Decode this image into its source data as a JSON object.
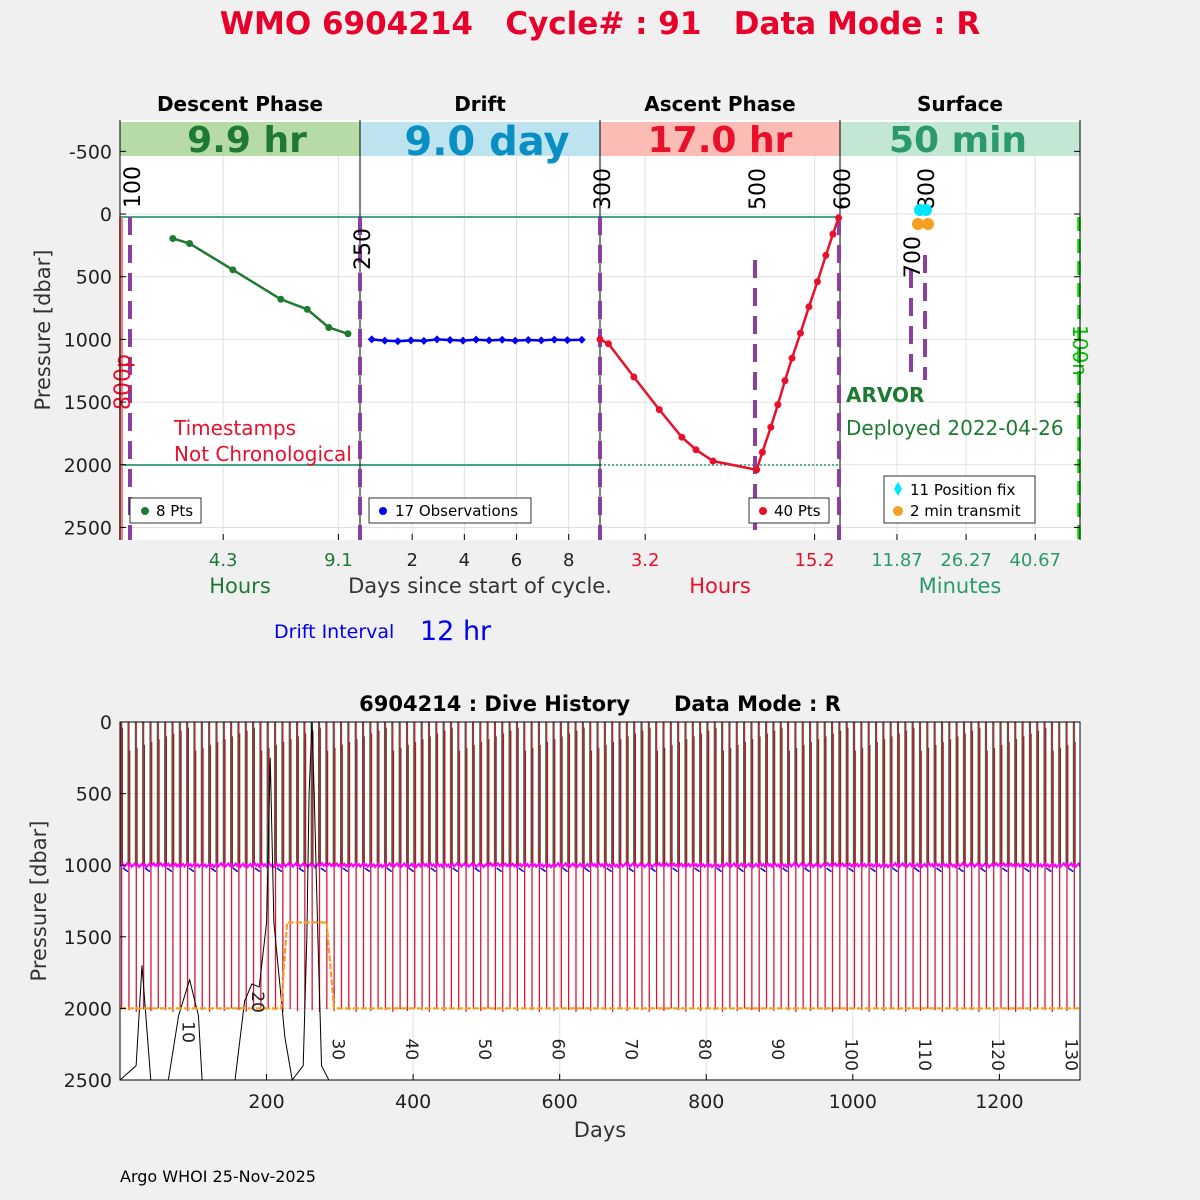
{
  "title": "WMO 6904214   Cycle# : 91   Data Mode : R",
  "footer": "Argo WHOI 25-Nov-2025",
  "colors": {
    "title": "#e8002a",
    "descent": "#1e7a32",
    "drift": "#0000ee",
    "ascent": "#e8102a",
    "surface": "#2a9a6a",
    "purple": "#8b3f9e",
    "green_bright": "#00dd00",
    "descent_bg": "#b7dba7",
    "drift_bg": "#bde3ef",
    "ascent_bg": "#fbbcb6",
    "surface_bg": "#c4e6d4",
    "drift_big": "#0a8fc5",
    "cyan": "#00e5ff",
    "orange": "#f5a020"
  },
  "chart_data": [
    {
      "type": "line",
      "name": "cycle-profile",
      "ylabel": "Pressure [dbar]",
      "ylim": [
        -750,
        2600
      ],
      "yticks": [
        -500,
        0,
        500,
        1000,
        1500,
        2000,
        2500
      ],
      "phases": [
        {
          "id": "descent",
          "title": "Descent Phase",
          "duration": "9.9 hr",
          "xlim": [
            0,
            10
          ],
          "xticks": [
            {
              "v": 4.3,
              "label": "4.3"
            },
            {
              "v": 9.1,
              "label": "9.1"
            }
          ],
          "xlabel": "Hours",
          "series": [
            {
              "name": "descent",
              "points": [
                [
                  2.2,
                  195
                ],
                [
                  2.9,
                  235
                ],
                [
                  4.7,
                  445
                ],
                [
                  6.7,
                  680
                ],
                [
                  7.8,
                  760
                ],
                [
                  8.7,
                  905
                ],
                [
                  9.5,
                  955
                ]
              ]
            }
          ],
          "legend": "8 Pts"
        },
        {
          "id": "drift",
          "title": "Drift",
          "duration": "9.0 day",
          "xlim": [
            0,
            9.2
          ],
          "xticks": [
            {
              "v": 2,
              "label": "2"
            },
            {
              "v": 4,
              "label": "4"
            },
            {
              "v": 6,
              "label": "6"
            },
            {
              "v": 8,
              "label": "8"
            }
          ],
          "xlabel": "Days since start of cycle.",
          "series": [
            {
              "name": "drift",
              "points": [
                [
                  0.45,
                  1000
                ],
                [
                  0.95,
                  1010
                ],
                [
                  1.45,
                  1015
                ],
                [
                  1.95,
                  1008
                ],
                [
                  2.45,
                  1012
                ],
                [
                  2.95,
                  1000
                ],
                [
                  3.45,
                  1005
                ],
                [
                  3.95,
                  1010
                ],
                [
                  4.45,
                  1002
                ],
                [
                  4.95,
                  1008
                ],
                [
                  5.45,
                  1003
                ],
                [
                  5.95,
                  1010
                ],
                [
                  6.45,
                  1005
                ],
                [
                  6.95,
                  1008
                ],
                [
                  7.45,
                  1002
                ],
                [
                  7.95,
                  1006
                ],
                [
                  8.5,
                  1003
                ]
              ]
            }
          ],
          "legend": "17 Observations"
        },
        {
          "id": "ascent",
          "title": "Ascent Phase",
          "duration": "17.0 hr",
          "xlim": [
            0,
            17
          ],
          "xticks": [
            {
              "v": 3.2,
              "label": "3.2"
            },
            {
              "v": 15.2,
              "label": "15.2"
            }
          ],
          "xlabel": "Hours",
          "series": [
            {
              "name": "ascent",
              "points": [
                [
                  0,
                  1000
                ],
                [
                  0.6,
                  1035
                ],
                [
                  2.4,
                  1300
                ],
                [
                  4.2,
                  1560
                ],
                [
                  5.8,
                  1780
                ],
                [
                  6.8,
                  1880
                ],
                [
                  8,
                  1970
                ],
                [
                  11.1,
                  2040
                ],
                [
                  11.5,
                  1900
                ],
                [
                  12.1,
                  1700
                ],
                [
                  12.6,
                  1520
                ],
                [
                  13.1,
                  1330
                ],
                [
                  13.6,
                  1150
                ],
                [
                  14.2,
                  950
                ],
                [
                  14.8,
                  740
                ],
                [
                  15.4,
                  540
                ],
                [
                  16,
                  330
                ],
                [
                  16.5,
                  160
                ],
                [
                  16.9,
                  30
                ]
              ]
            }
          ],
          "legend": "40 Pts"
        },
        {
          "id": "surface",
          "title": "Surface",
          "duration": "50 min",
          "xlim": [
            0,
            50
          ],
          "xticks": [
            {
              "v": 11.87,
              "label": "11.87"
            },
            {
              "v": 26.27,
              "label": "26.27"
            },
            {
              "v": 40.67,
              "label": "40.67"
            }
          ],
          "xlabel": "Minutes",
          "legend_items": [
            "11 Position fix",
            "2 min transmit"
          ]
        }
      ],
      "reference_lines": [
        0,
        2000
      ],
      "annotations": {
        "descent_marks": [
          "100",
          "800p"
        ],
        "drift_marks": [
          "250"
        ],
        "ascent_marks": [
          "300",
          "500",
          "600"
        ],
        "surface_marks": [
          "700",
          "800",
          "100n"
        ],
        "note_line1": "Timestamps",
        "note_line2": "Not Chronological",
        "float_type": "ARVOR",
        "deployed": "Deployed 2022-04-26",
        "drift_interval_label": "Drift Interval",
        "drift_interval_value": "12 hr"
      }
    },
    {
      "type": "line",
      "name": "dive-history",
      "title": "6904214 : Dive History      Data Mode : R",
      "xlabel": "Days",
      "ylabel": "Pressure [dbar]",
      "xlim": [
        0,
        1310
      ],
      "ylim": [
        0,
        2500
      ],
      "xticks": [
        200,
        400,
        600,
        800,
        1000,
        1200
      ],
      "yticks": [
        0,
        500,
        1000,
        1500,
        2000,
        2500
      ],
      "cycle_labels": [
        {
          "day": 180,
          "p": 1880,
          "label": "20"
        },
        {
          "day": 85,
          "p": 2090,
          "label": "10"
        },
        {
          "day": 290,
          "p": 2210,
          "label": "30"
        },
        {
          "day": 390,
          "p": 2210,
          "label": "40"
        },
        {
          "day": 490,
          "p": 2210,
          "label": "50"
        },
        {
          "day": 590,
          "p": 2210,
          "label": "60"
        },
        {
          "day": 690,
          "p": 2210,
          "label": "70"
        },
        {
          "day": 790,
          "p": 2210,
          "label": "80"
        },
        {
          "day": 890,
          "p": 2210,
          "label": "90"
        },
        {
          "day": 990,
          "p": 2210,
          "label": "100"
        },
        {
          "day": 1090,
          "p": 2210,
          "label": "110"
        },
        {
          "day": 1190,
          "p": 2210,
          "label": "120"
        },
        {
          "day": 1290,
          "p": 2210,
          "label": "130"
        }
      ],
      "cycle_period_days": 10,
      "drift_pressure": 1000,
      "profile_pressure": 2000,
      "park_series": {
        "name": "park-depth",
        "points": [
          [
            0,
            2000
          ],
          [
            220,
            2000
          ],
          [
            228,
            1400
          ],
          [
            282,
            1400
          ],
          [
            292,
            2000
          ],
          [
            1310,
            2000
          ]
        ]
      },
      "ground_series": {
        "name": "bathymetry",
        "points": [
          [
            0,
            2500
          ],
          [
            22,
            2400
          ],
          [
            30,
            1700
          ],
          [
            42,
            2500
          ],
          [
            66,
            2500
          ],
          [
            80,
            2050
          ],
          [
            95,
            1800
          ],
          [
            107,
            2050
          ],
          [
            112,
            2500
          ],
          [
            157,
            2500
          ],
          [
            170,
            1950
          ],
          [
            180,
            1830
          ],
          [
            190,
            1850
          ],
          [
            200,
            1400
          ],
          [
            205,
            250
          ],
          [
            210,
            1400
          ],
          [
            225,
            2200
          ],
          [
            235,
            2500
          ],
          [
            250,
            2400
          ],
          [
            255,
            1500
          ],
          [
            258,
            500
          ],
          [
            262,
            0
          ],
          [
            265,
            500
          ],
          [
            270,
            1500
          ],
          [
            275,
            2400
          ],
          [
            285,
            2500
          ],
          [
            1310,
            2500
          ]
        ]
      }
    }
  ]
}
